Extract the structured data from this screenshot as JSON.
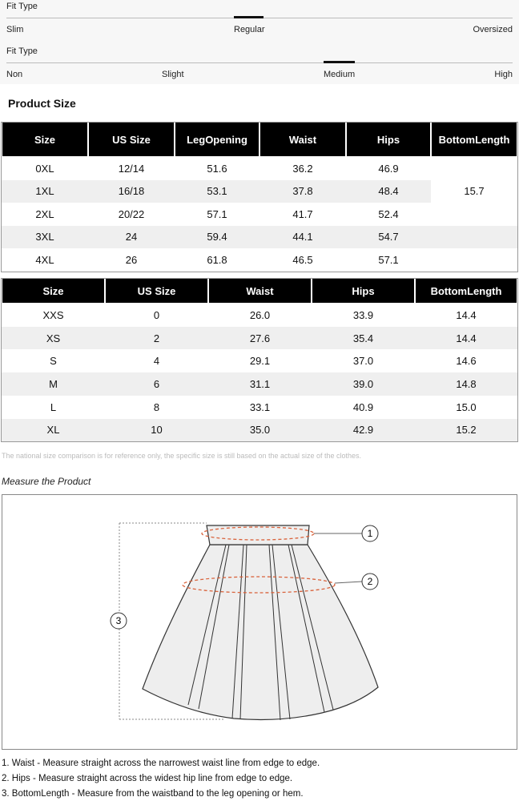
{
  "fit_type_1": {
    "label": "Fit Type",
    "options": [
      "Slim",
      "Regular",
      "Oversized"
    ]
  },
  "fit_type_2": {
    "label": "Fit Type",
    "options": [
      "Non",
      "Slight",
      "Medium",
      "High"
    ]
  },
  "section_title": "Product Size",
  "table_1": {
    "header": [
      "Size",
      "US Size",
      "LegOpening",
      "Waist",
      "Hips",
      "BottomLength"
    ],
    "rows": [
      [
        "0XL",
        "12/14",
        "51.6",
        "36.2",
        "46.9"
      ],
      [
        "1XL",
        "16/18",
        "53.1",
        "37.8",
        "48.4"
      ],
      [
        "2XL",
        "20/22",
        "57.1",
        "41.7",
        "52.4"
      ],
      [
        "3XL",
        "24",
        "59.4",
        "44.1",
        "54.7"
      ],
      [
        "4XL",
        "26",
        "61.8",
        "46.5",
        "57.1"
      ]
    ],
    "bottom_length": "15.7"
  },
  "table_2": {
    "header": [
      "Size",
      "US Size",
      "Waist",
      "Hips",
      "BottomLength"
    ],
    "rows": [
      [
        "XXS",
        "0",
        "26.0",
        "33.9",
        "14.4"
      ],
      [
        "XS",
        "2",
        "27.6",
        "35.4",
        "14.4"
      ],
      [
        "S",
        "4",
        "29.1",
        "37.0",
        "14.6"
      ],
      [
        "M",
        "6",
        "31.1",
        "39.0",
        "14.8"
      ],
      [
        "L",
        "8",
        "33.1",
        "40.9",
        "15.0"
      ],
      [
        "XL",
        "10",
        "35.0",
        "42.9",
        "15.2"
      ]
    ]
  },
  "note": "The national size comparison is for reference only, the specific size is still based on the actual size of the clothes.",
  "measure_title": "Measure the Product",
  "diagram": {
    "callouts": [
      "1",
      "2",
      "3"
    ]
  },
  "instructions": [
    "1. Waist - Measure straight across the narrowest waist line from edge to edge.",
    "2. Hips - Measure straight across the widest hip line from edge to edge.",
    "3. BottomLength - Measure from the waistband to the leg opening or hem."
  ]
}
